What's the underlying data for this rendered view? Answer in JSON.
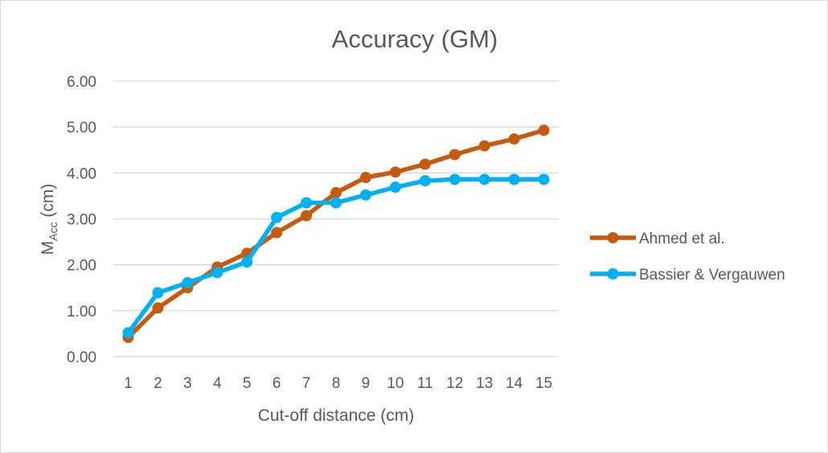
{
  "chart_data": {
    "type": "line",
    "title": "Accuracy (GM)",
    "xlabel": "Cut-off distance (cm)",
    "ylabel": {
      "main": "M",
      "sub": "Acc",
      "suffix": " (cm)"
    },
    "categories": [
      "1",
      "2",
      "3",
      "4",
      "5",
      "6",
      "7",
      "8",
      "9",
      "10",
      "11",
      "12",
      "13",
      "14",
      "15"
    ],
    "ylim": [
      0,
      6
    ],
    "yticks": [
      "0.00",
      "1.00",
      "2.00",
      "3.00",
      "4.00",
      "5.00",
      "6.00"
    ],
    "grid": true,
    "legend_position": "right",
    "series": [
      {
        "name": "Ahmed et al.",
        "color": "#c55a11",
        "values": [
          0.42,
          1.06,
          1.5,
          1.95,
          2.25,
          2.7,
          3.07,
          3.57,
          3.9,
          4.02,
          4.19,
          4.4,
          4.59,
          4.74,
          4.93
        ]
      },
      {
        "name": "Bassier & Vergauwen",
        "color": "#00b0f0",
        "values": [
          0.52,
          1.39,
          1.61,
          1.83,
          2.06,
          3.03,
          3.35,
          3.35,
          3.52,
          3.69,
          3.83,
          3.86,
          3.86,
          3.86,
          3.86
        ]
      }
    ]
  }
}
